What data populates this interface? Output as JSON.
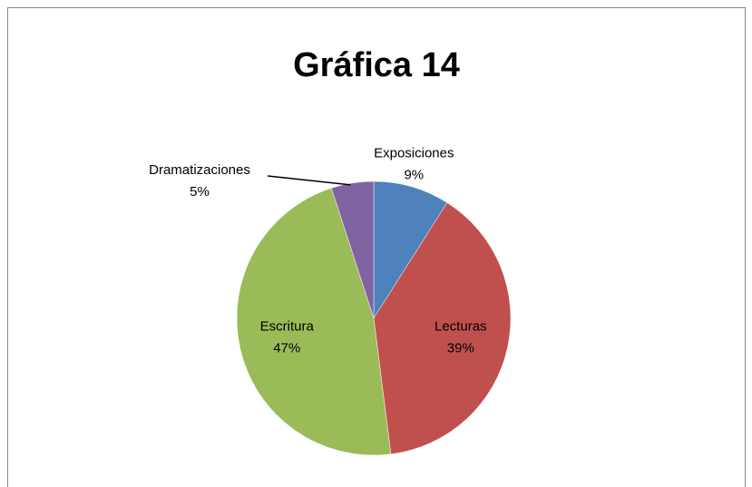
{
  "chart_data": {
    "type": "pie",
    "title": "Gráfica 14",
    "categories": [
      "Exposiciones",
      "Lecturas",
      "Escritura",
      "Dramatizaciones"
    ],
    "values": [
      9,
      39,
      47,
      5
    ],
    "value_labels": [
      "9%",
      "39%",
      "47%",
      "5%"
    ],
    "colors": [
      "#4f81bd",
      "#c0504d",
      "#9bbb59",
      "#8064a2"
    ]
  }
}
